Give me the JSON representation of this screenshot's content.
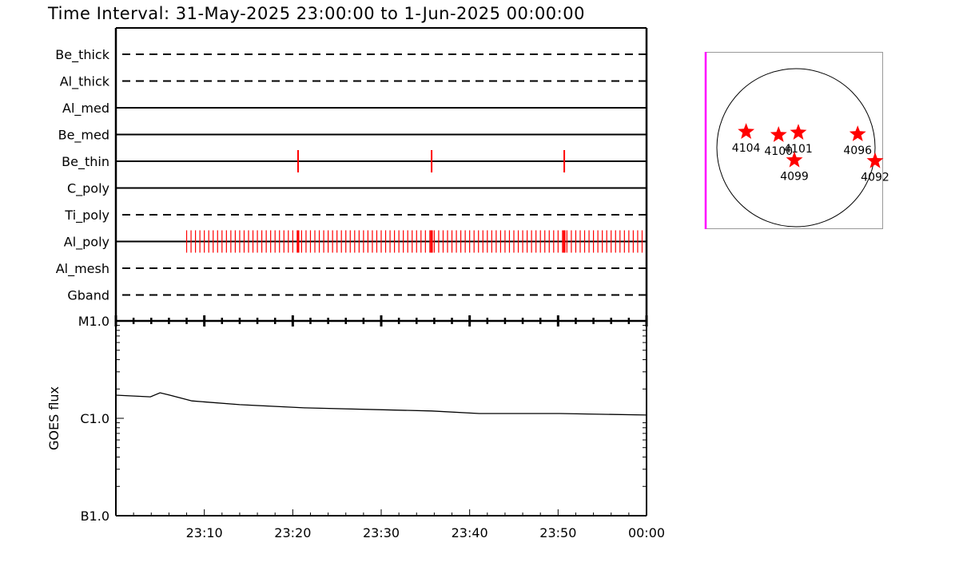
{
  "title": "Time Interval: 31-May-2025 23:00:00 to  1-Jun-2025 00:00:00",
  "colors": {
    "axis": "#000000",
    "event": "#ff0000",
    "frame": "#ff00ff",
    "star": "#ff0000"
  },
  "chart_data": [
    {
      "type": "timeline",
      "xlim": [
        "23:00",
        "00:00"
      ],
      "rows": [
        {
          "label": "Be_thick",
          "style": "dashed",
          "events": []
        },
        {
          "label": "Al_thick",
          "style": "dashed",
          "events": []
        },
        {
          "label": "Al_med",
          "style": "solid",
          "events": []
        },
        {
          "label": "Be_med",
          "style": "solid",
          "events": []
        },
        {
          "label": "Be_thin",
          "style": "solid",
          "events": [
            20.6,
            35.7,
            50.7
          ]
        },
        {
          "label": "C_poly",
          "style": "solid",
          "events": []
        },
        {
          "label": "Ti_poly",
          "style": "dashed",
          "events": []
        },
        {
          "label": "Al_poly",
          "style": "solid",
          "events_start_min": 8.0,
          "events_end_min": 59.7,
          "events_step_min": 0.5,
          "long_events": [
            20.6,
            35.7,
            50.7
          ]
        },
        {
          "label": "Al_mesh",
          "style": "dashed",
          "events": []
        },
        {
          "label": "Gband",
          "style": "dashed",
          "events": []
        }
      ]
    },
    {
      "type": "line",
      "ylabel": "GOES flux",
      "yscale": "log",
      "ylim": [
        1e-07,
        1e-05
      ],
      "ytick_labels": [
        "B1.0",
        "C1.0",
        "M1.0"
      ],
      "xtick_labels": [
        "23:10",
        "23:20",
        "23:30",
        "23:40",
        "23:50",
        "00:00"
      ],
      "x_minutes": [
        0,
        3.9,
        5.0,
        6.1,
        8.6,
        14,
        21.3,
        35.7,
        41.1,
        50.2,
        60
      ],
      "flux": [
        1.73e-06,
        1.66e-06,
        1.83e-06,
        1.73e-06,
        1.51e-06,
        1.38e-06,
        1.28e-06,
        1.19e-06,
        1.12e-06,
        1.12e-06,
        1.08e-06
      ]
    },
    {
      "type": "scatter",
      "description_kind": "solar disk active regions",
      "regions": [
        {
          "label": "4104",
          "dx": -0.63,
          "dy": -0.08
        },
        {
          "label": "4100",
          "dx": -0.22,
          "dy": -0.04
        },
        {
          "label": "4101",
          "dx": 0.03,
          "dy": -0.07
        },
        {
          "label": "4099",
          "dx": -0.02,
          "dy": 0.28
        },
        {
          "label": "4096",
          "dx": 0.78,
          "dy": -0.05
        },
        {
          "label": "4092",
          "dx": 1.0,
          "dy": 0.29
        }
      ]
    }
  ]
}
